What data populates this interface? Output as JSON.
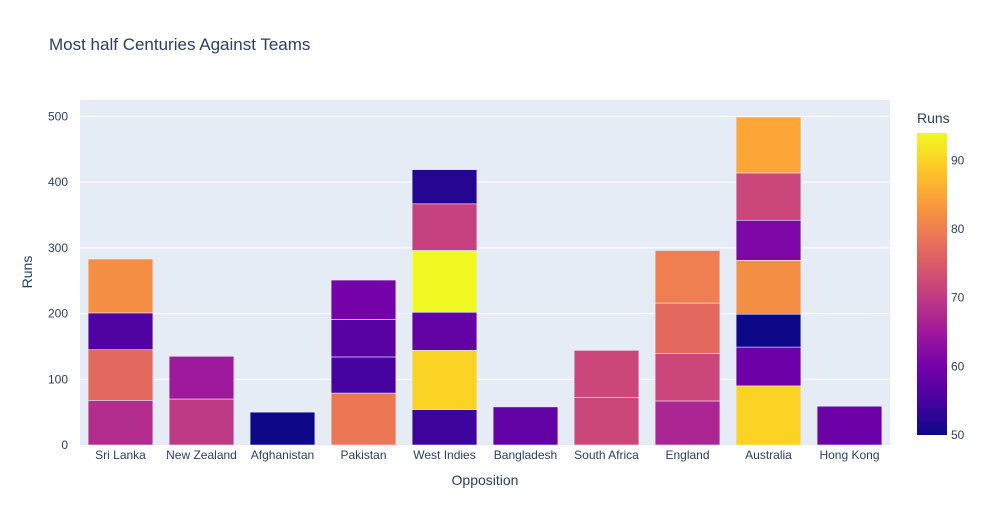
{
  "chart_data": {
    "type": "bar",
    "stacked": true,
    "title": "Most half Centuries Against Teams",
    "xlabel": "Opposition",
    "ylabel": "Runs",
    "ylim": [
      0,
      525
    ],
    "yticks": [
      0,
      100,
      200,
      300,
      400,
      500
    ],
    "grid": true,
    "categories": [
      "Sri Lanka",
      "New Zealand",
      "Afghanistan",
      "Pakistan",
      "West Indies",
      "Bangladesh",
      "South Africa",
      "England",
      "Australia",
      "Hong Kong"
    ],
    "stacks": [
      [
        68,
        77,
        56,
        82
      ],
      [
        70,
        65
      ],
      [
        50
      ],
      [
        79,
        55,
        57,
        60
      ],
      [
        54,
        90,
        58,
        94,
        71,
        52
      ],
      [
        58
      ],
      [
        72,
        72
      ],
      [
        67,
        72,
        77,
        80
      ],
      [
        90,
        59,
        50,
        82,
        61,
        72,
        85
      ],
      [
        59
      ]
    ],
    "colorbar": {
      "title": "Runs",
      "min": 50,
      "max": 94,
      "ticks": [
        50,
        60,
        70,
        80,
        90
      ],
      "colorscale": [
        "#0d0887",
        "#46039f",
        "#7201a8",
        "#9c179e",
        "#bd3786",
        "#d8576b",
        "#ed7953",
        "#fb9f3a",
        "#fdca26",
        "#f0f921"
      ]
    }
  }
}
